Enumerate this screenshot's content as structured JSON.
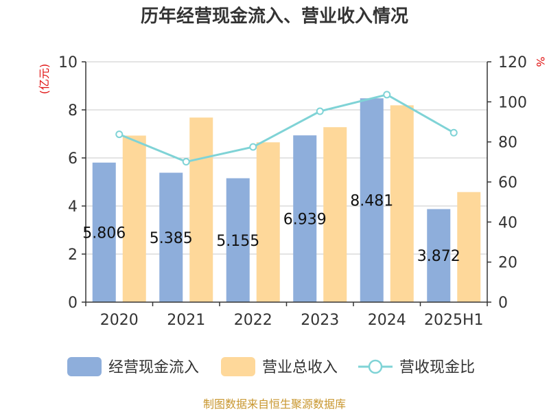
{
  "chart_data": {
    "type": "bar",
    "title": "历年经营现金流入、营业收入情况",
    "categories": [
      "2020",
      "2021",
      "2022",
      "2023",
      "2024",
      "2025H1"
    ],
    "series": [
      {
        "name": "经营现金流入",
        "kind": "bar",
        "axis": "left",
        "color": "#8eaedb",
        "values": [
          5.806,
          5.385,
          5.155,
          6.939,
          8.481,
          3.872
        ]
      },
      {
        "name": "营业总收入",
        "kind": "bar",
        "axis": "left",
        "color": "#fed89a",
        "values": [
          6.93,
          7.68,
          6.65,
          7.28,
          8.19,
          4.58
        ]
      },
      {
        "name": "营收现金比",
        "kind": "line",
        "axis": "right",
        "color": "#7fd3d6",
        "values": [
          83.8,
          70.1,
          77.5,
          95.3,
          103.6,
          84.6
        ]
      }
    ],
    "left_axis": {
      "unit": "(亿元)",
      "min": 0,
      "max": 10,
      "ticks": [
        0,
        2,
        4,
        6,
        8,
        10
      ]
    },
    "right_axis": {
      "unit": "%",
      "min": 0,
      "max": 120,
      "ticks": [
        0,
        20,
        40,
        60,
        80,
        100,
        120
      ]
    },
    "data_labels": [
      "5.806",
      "5.385",
      "5.155",
      "6.939",
      "8.481",
      "3.872"
    ],
    "grid": true,
    "legend_position": "bottom"
  },
  "source_note": "制图数据来自恒生聚源数据库"
}
